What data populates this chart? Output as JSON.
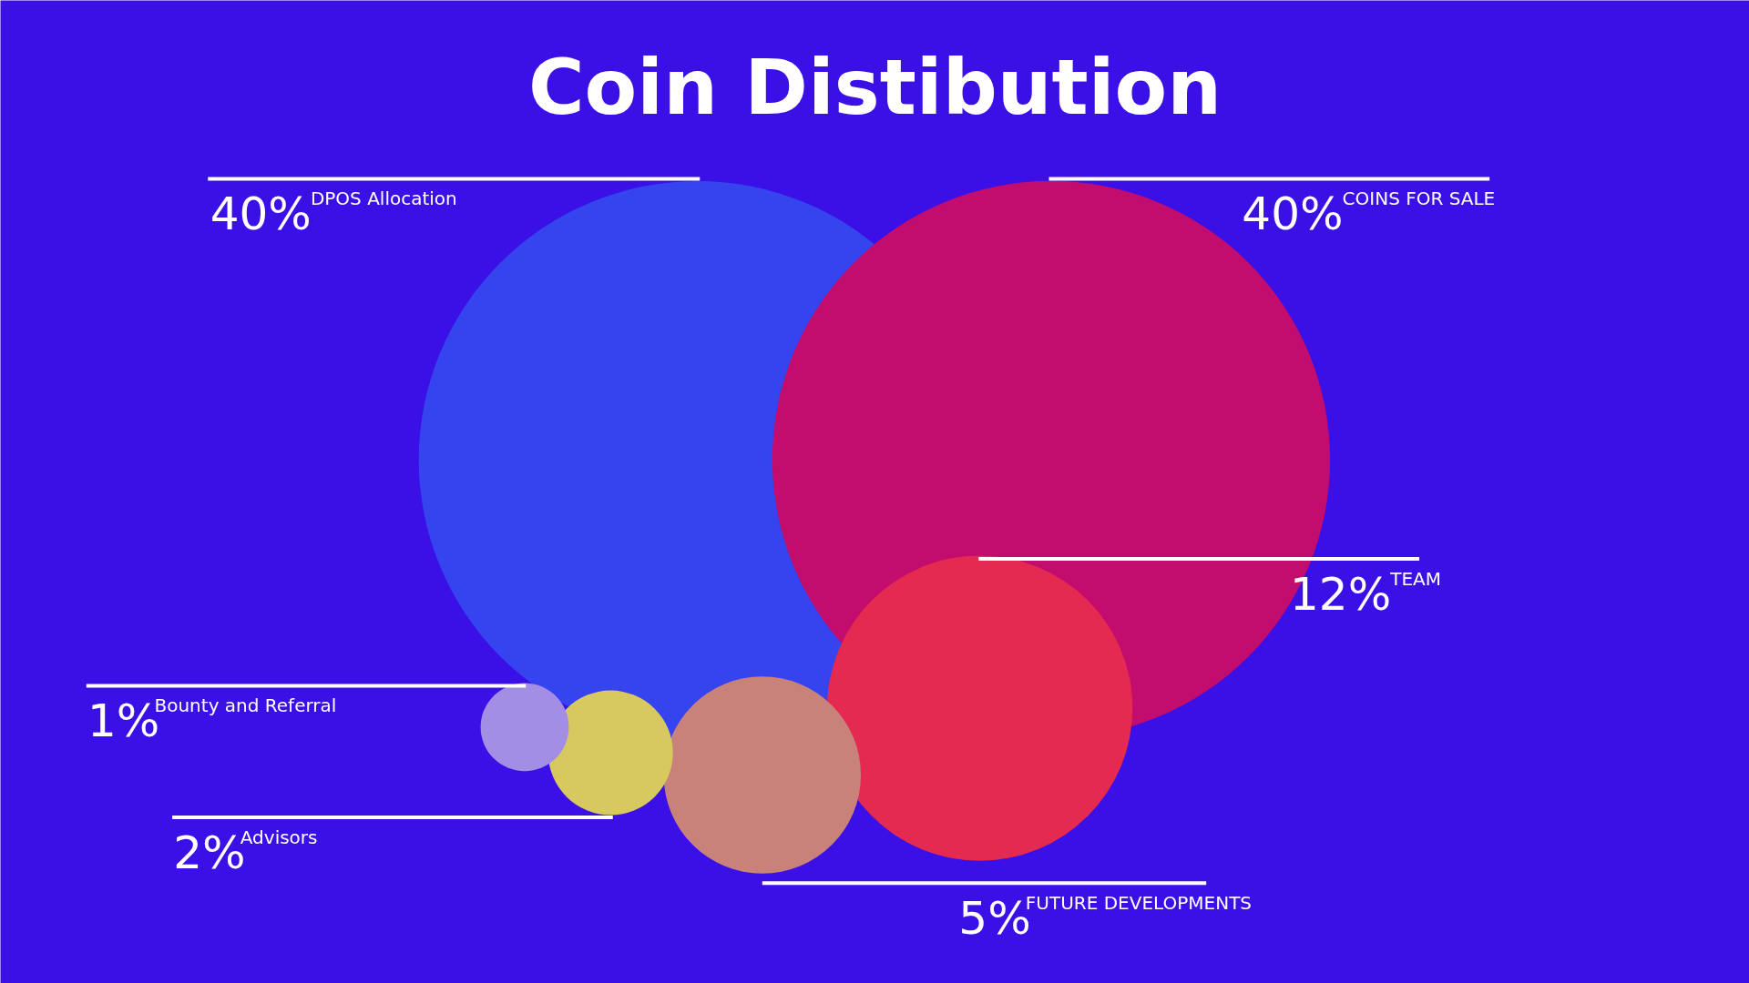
{
  "chart_data": {
    "type": "other",
    "title": "Coin Distibution",
    "categories": [
      "DPOS Allocation",
      "COINS FOR SALE",
      "TEAM",
      "FUTURE DEVELOPMENTS",
      "Advisors",
      "Bounty and Referral"
    ],
    "values": [
      40,
      40,
      12,
      5,
      2,
      1
    ],
    "value_labels": [
      "40%",
      "40%",
      "12%",
      "5%",
      "2%",
      "1%"
    ],
    "colors": [
      "#3544ee",
      "#c20c6e",
      "#e42a50",
      "#c8827a",
      "#d8c860",
      "#a38ee6"
    ]
  }
}
